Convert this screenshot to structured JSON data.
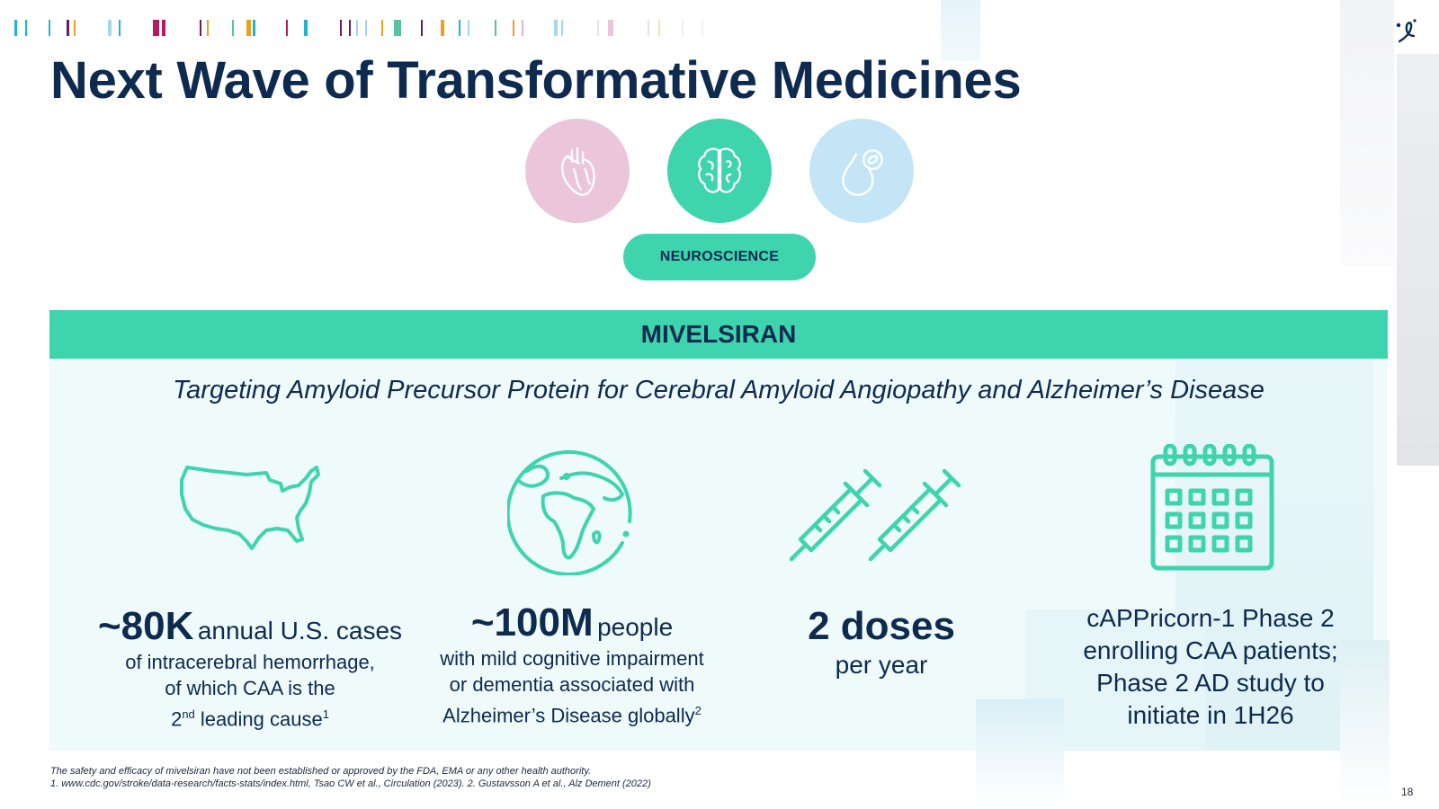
{
  "title": "Next Wave of Transformative Medicines",
  "areas": [
    {
      "icon": "heart-icon",
      "color": "#ebc6db"
    },
    {
      "icon": "brain-icon",
      "color": "#3ed4ae"
    },
    {
      "icon": "blood-drop-icon",
      "color": "#c3e5f5"
    }
  ],
  "selected_area": "NEUROSCIENCE",
  "program": "MIVELSIRAN",
  "subtitle": "Targeting Amyloid Precursor Protein for Cerebral Amyloid Angiopathy and Alzheimer’s Disease",
  "stats": {
    "us": {
      "icon": "us-map-icon",
      "big": "~80K",
      "after": "annual U.S. cases",
      "line1": "of intracerebral hemorrhage,",
      "line2": "of which CAA is the",
      "line3_pre": "2",
      "line3_sup": "nd",
      "line3_post": " leading cause",
      "ref": "1"
    },
    "global": {
      "icon": "globe-icon",
      "big": "~100M",
      "after": "people",
      "line1": "with mild cognitive impairment",
      "line2": "or dementia associated with",
      "line3": "Alzheimer’s Disease globally",
      "ref": "2"
    },
    "dosing": {
      "icon": "syringes-icon",
      "big": "2 doses",
      "line1": "per year"
    },
    "trials": {
      "icon": "calendar-icon",
      "line1": "cAPPricorn-1 Phase 2",
      "line2": "enrolling CAA patients;",
      "line3": "Phase 2 AD study to",
      "line4": "initiate in 1H26"
    }
  },
  "footnotes": {
    "disclaimer": "The safety and efficacy of mivelsiran have not been established or approved by the FDA, EMA or any other health authority.",
    "refs": "1. www.cdc.gov/stroke/data-research/facts-stats/index.html, Tsao CW et al., Circulation (2023).   2. Gustavsson A et al., Alz Dement (2022)"
  },
  "page_number": "18",
  "colors": {
    "navy": "#0e2a4f",
    "teal": "#3ed4ae",
    "panel": "#effafb"
  }
}
